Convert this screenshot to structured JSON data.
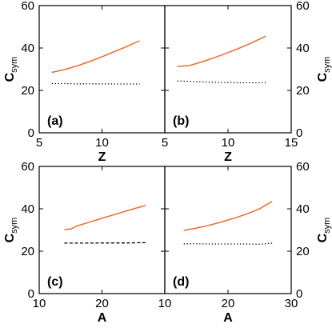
{
  "chart_data": [
    {
      "panel": "(a)",
      "type": "line",
      "xlabel": "Z",
      "ylabel": "C",
      "ylabel_sub": "sym",
      "xlim": [
        5,
        15
      ],
      "ylim": [
        0,
        60
      ],
      "xticks": [
        5,
        10,
        15
      ],
      "xtick_labels": [
        "5",
        "10",
        ""
      ],
      "yticks": [
        0,
        20,
        40,
        60
      ],
      "ytick_labels": [
        "0",
        "20",
        "40",
        "60"
      ],
      "ytick_side": "left",
      "series": [
        {
          "style": "solid",
          "color": "#ee6a2c",
          "x": [
            6,
            7,
            8,
            9,
            10,
            11,
            12,
            13
          ],
          "y": [
            28.5,
            29.8,
            31.5,
            33.6,
            35.9,
            38.3,
            40.8,
            43.4
          ]
        },
        {
          "style": "dotted",
          "color": "#000000",
          "x": [
            6,
            7,
            8,
            9,
            10,
            11,
            12,
            13
          ],
          "y": [
            23.2,
            23.2,
            23.1,
            23.1,
            23.1,
            23.0,
            23.0,
            23.0
          ]
        }
      ]
    },
    {
      "panel": "(b)",
      "type": "line",
      "xlabel": "Z",
      "ylabel": "C",
      "ylabel_sub": "sym",
      "xlim": [
        5,
        15
      ],
      "ylim": [
        0,
        60
      ],
      "xticks": [
        5,
        10,
        15
      ],
      "xtick_labels": [
        "5",
        "10",
        "15"
      ],
      "yticks": [
        0,
        20,
        40,
        60
      ],
      "ytick_labels": [
        "0",
        "20",
        "40",
        "60"
      ],
      "ytick_side": "right",
      "series": [
        {
          "style": "solid",
          "color": "#ee6a2c",
          "x": [
            6,
            7,
            8,
            9,
            10,
            11,
            12,
            13
          ],
          "y": [
            31.3,
            31.8,
            33.6,
            35.6,
            37.8,
            40.2,
            42.8,
            45.6
          ]
        },
        {
          "style": "dotted",
          "color": "#000000",
          "x": [
            6,
            7,
            8,
            9,
            10,
            11,
            12,
            13
          ],
          "y": [
            24.5,
            24.2,
            24.0,
            23.8,
            23.7,
            23.6,
            23.6,
            23.6
          ]
        }
      ]
    },
    {
      "panel": "(c)",
      "type": "line",
      "xlabel": "A",
      "ylabel": "C",
      "ylabel_sub": "sym",
      "xlim": [
        10,
        30
      ],
      "ylim": [
        0,
        60
      ],
      "xticks": [
        10,
        20,
        30
      ],
      "xtick_labels": [
        "10",
        "20",
        ""
      ],
      "yticks": [
        0,
        20,
        40,
        60
      ],
      "ytick_labels": [
        "0",
        "20",
        "40",
        "60"
      ],
      "ytick_side": "left",
      "series": [
        {
          "style": "solid",
          "color": "#ee6a2c",
          "x": [
            14,
            15,
            16,
            18,
            20,
            22,
            24,
            26,
            27
          ],
          "y": [
            30.3,
            30.4,
            31.9,
            33.7,
            35.5,
            37.3,
            39.1,
            40.8,
            41.6
          ]
        },
        {
          "style": "dashed",
          "color": "#000000",
          "x": [
            14,
            16,
            18,
            20,
            22,
            24,
            26,
            27
          ],
          "y": [
            23.8,
            23.8,
            23.8,
            23.9,
            23.9,
            23.9,
            24.0,
            24.0
          ]
        }
      ]
    },
    {
      "panel": "(d)",
      "type": "line",
      "xlabel": "A",
      "ylabel": "C",
      "ylabel_sub": "sym",
      "xlim": [
        10,
        30
      ],
      "ylim": [
        0,
        60
      ],
      "xticks": [
        10,
        20,
        30
      ],
      "xtick_labels": [
        "10",
        "20",
        "30"
      ],
      "yticks": [
        0,
        20,
        40,
        60
      ],
      "ytick_labels": [
        "0",
        "20",
        "40",
        "60"
      ],
      "ytick_side": "right",
      "series": [
        {
          "style": "solid",
          "color": "#ee6a2c",
          "x": [
            13,
            15,
            17,
            19,
            21,
            23,
            25,
            26,
            27
          ],
          "y": [
            29.8,
            30.9,
            32.2,
            33.8,
            35.6,
            37.6,
            40.0,
            41.8,
            43.5
          ]
        },
        {
          "style": "dotted",
          "color": "#000000",
          "x": [
            13,
            15,
            17,
            19,
            21,
            23,
            25,
            26,
            27
          ],
          "y": [
            23.5,
            23.5,
            23.4,
            23.4,
            23.4,
            23.4,
            23.3,
            23.5,
            23.8
          ]
        }
      ]
    }
  ]
}
